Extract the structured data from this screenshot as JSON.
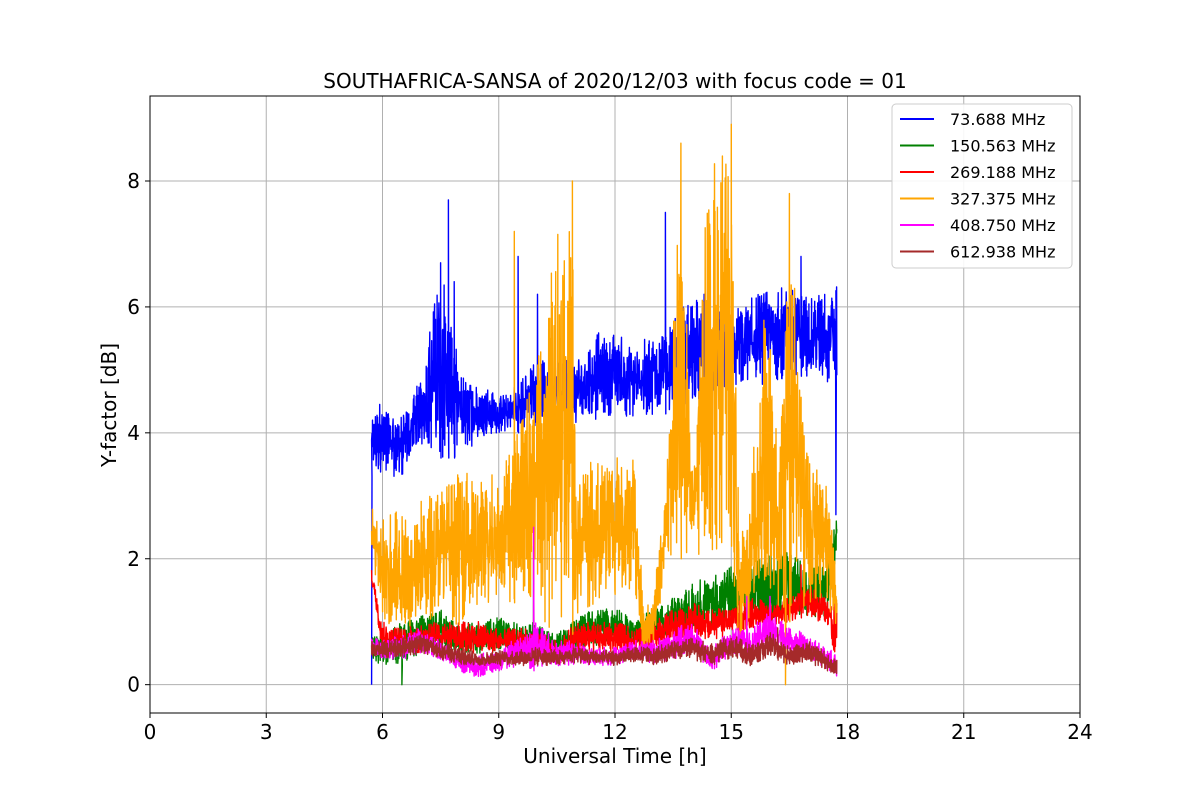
{
  "chart_data": {
    "type": "line",
    "title": "SOUTHAFRICA-SANSA of 2020/12/03 with focus code = 01",
    "xlabel": "Universal Time [h]",
    "ylabel": "Y-factor [dB]",
    "xlim": [
      0,
      24
    ],
    "ylim": [
      -0.45,
      9.35
    ],
    "xticks": [
      0,
      3,
      6,
      9,
      12,
      15,
      18,
      21,
      24
    ],
    "yticks": [
      0,
      2,
      4,
      6,
      8
    ],
    "xtick_labels": [
      "0",
      "3",
      "6",
      "9",
      "12",
      "15",
      "18",
      "21",
      "24"
    ],
    "ytick_labels": [
      "0",
      "2",
      "4",
      "6",
      "8"
    ],
    "grid": true,
    "legend_position": "top-right",
    "series": [
      {
        "name": " 73.688 MHz",
        "color": "#0000ff",
        "band": [
          [
            5.72,
            3.3,
            4.3
          ],
          [
            6.0,
            3.3,
            4.6
          ],
          [
            6.5,
            3.3,
            4.3
          ],
          [
            7.0,
            3.8,
            4.9
          ],
          [
            7.5,
            3.6,
            6.7
          ],
          [
            8.0,
            3.6,
            5.0
          ],
          [
            8.5,
            3.9,
            4.8
          ],
          [
            9.0,
            4.0,
            4.6
          ],
          [
            9.5,
            4.0,
            4.8
          ],
          [
            10.0,
            4.1,
            5.2
          ],
          [
            10.5,
            4.2,
            5.1
          ],
          [
            11.0,
            4.1,
            5.2
          ],
          [
            11.5,
            4.2,
            5.6
          ],
          [
            12.0,
            4.3,
            5.6
          ],
          [
            12.5,
            4.2,
            5.4
          ],
          [
            13.0,
            4.3,
            5.6
          ],
          [
            13.5,
            4.3,
            5.8
          ],
          [
            14.0,
            4.4,
            6.2
          ],
          [
            14.5,
            4.5,
            6.0
          ],
          [
            15.0,
            4.6,
            5.9
          ],
          [
            15.5,
            4.7,
            6.2
          ],
          [
            16.0,
            4.8,
            6.3
          ],
          [
            16.5,
            4.9,
            6.4
          ],
          [
            17.0,
            4.9,
            6.2
          ],
          [
            17.5,
            4.8,
            6.3
          ],
          [
            17.72,
            4.8,
            6.4
          ]
        ],
        "spikes": [
          [
            5.72,
            0.0
          ],
          [
            7.5,
            6.7
          ],
          [
            7.7,
            7.7
          ],
          [
            7.85,
            6.4
          ],
          [
            9.5,
            6.8
          ],
          [
            10.0,
            6.2
          ],
          [
            13.3,
            7.5
          ],
          [
            14.3,
            6.2
          ],
          [
            16.3,
            6.3
          ],
          [
            16.8,
            6.8
          ],
          [
            17.7,
            2.7
          ]
        ]
      },
      {
        "name": "150.563 MHz",
        "color": "#008000",
        "band": [
          [
            5.72,
            0.4,
            0.8
          ],
          [
            6.0,
            0.3,
            0.8
          ],
          [
            6.5,
            0.3,
            1.0
          ],
          [
            7.0,
            0.5,
            1.1
          ],
          [
            7.5,
            0.6,
            1.2
          ],
          [
            8.0,
            0.5,
            1.0
          ],
          [
            8.5,
            0.5,
            1.0
          ],
          [
            9.0,
            0.5,
            1.1
          ],
          [
            9.5,
            0.5,
            1.0
          ],
          [
            10.0,
            0.5,
            1.0
          ],
          [
            10.5,
            0.4,
            0.8
          ],
          [
            11.0,
            0.5,
            1.1
          ],
          [
            11.5,
            0.6,
            1.2
          ],
          [
            12.0,
            0.6,
            1.2
          ],
          [
            12.5,
            0.6,
            1.1
          ],
          [
            13.0,
            0.7,
            1.2
          ],
          [
            13.5,
            0.8,
            1.4
          ],
          [
            14.0,
            0.8,
            1.6
          ],
          [
            14.5,
            0.9,
            1.8
          ],
          [
            15.0,
            0.9,
            1.9
          ],
          [
            15.5,
            1.0,
            2.0
          ],
          [
            16.0,
            1.0,
            2.1
          ],
          [
            16.5,
            1.1,
            2.1
          ],
          [
            17.0,
            1.1,
            1.9
          ],
          [
            17.5,
            1.0,
            2.0
          ],
          [
            17.72,
            2.2,
            2.7
          ]
        ],
        "spikes": [
          [
            6.5,
            0.0
          ],
          [
            9.9,
            2.2
          ],
          [
            15.5,
            2.4
          ]
        ]
      },
      {
        "name": "269.188 MHz",
        "color": "#ff0000",
        "band": [
          [
            5.72,
            1.6,
            1.9
          ],
          [
            6.0,
            0.5,
            1.0
          ],
          [
            6.5,
            0.5,
            0.9
          ],
          [
            7.0,
            0.5,
            1.0
          ],
          [
            7.5,
            0.6,
            1.0
          ],
          [
            8.0,
            0.5,
            1.0
          ],
          [
            8.5,
            0.5,
            1.0
          ],
          [
            9.0,
            0.5,
            0.9
          ],
          [
            9.5,
            0.4,
            0.9
          ],
          [
            10.0,
            0.4,
            0.9
          ],
          [
            10.5,
            0.3,
            0.7
          ],
          [
            11.0,
            0.5,
            1.0
          ],
          [
            11.5,
            0.5,
            1.0
          ],
          [
            12.0,
            0.5,
            1.0
          ],
          [
            12.5,
            0.5,
            0.9
          ],
          [
            13.0,
            0.6,
            1.0
          ],
          [
            13.5,
            0.7,
            1.2
          ],
          [
            14.0,
            0.7,
            1.3
          ],
          [
            14.5,
            0.7,
            1.2
          ],
          [
            15.0,
            0.8,
            1.3
          ],
          [
            15.5,
            0.9,
            1.4
          ],
          [
            16.0,
            0.9,
            1.3
          ],
          [
            16.5,
            1.0,
            1.4
          ],
          [
            17.0,
            1.1,
            1.6
          ],
          [
            17.5,
            0.9,
            1.4
          ],
          [
            17.72,
            0.2,
            1.3
          ]
        ],
        "spikes": [
          [
            16.8,
            1.9
          ]
        ]
      },
      {
        "name": "327.375 MHz",
        "color": "#ffa500",
        "band": [
          [
            5.72,
            2.2,
            2.8
          ],
          [
            6.0,
            0.8,
            2.7
          ],
          [
            6.5,
            0.8,
            2.8
          ],
          [
            7.0,
            0.9,
            3.0
          ],
          [
            7.5,
            1.2,
            3.2
          ],
          [
            8.0,
            0.9,
            3.4
          ],
          [
            8.5,
            1.2,
            3.3
          ],
          [
            9.0,
            1.3,
            3.6
          ],
          [
            9.5,
            1.3,
            4.0
          ],
          [
            10.0,
            1.0,
            5.5
          ],
          [
            10.5,
            0.8,
            7.2
          ],
          [
            10.9,
            0.8,
            7.8
          ],
          [
            11.0,
            1.0,
            3.7
          ],
          [
            11.5,
            1.3,
            3.6
          ],
          [
            12.0,
            1.4,
            3.7
          ],
          [
            12.5,
            1.5,
            3.6
          ],
          [
            12.75,
            0.4,
            1.2
          ],
          [
            13.0,
            0.5,
            1.5
          ],
          [
            13.3,
            1.9,
            3.0
          ],
          [
            13.7,
            2.0,
            8.4
          ],
          [
            14.0,
            2.0,
            3.3
          ],
          [
            14.4,
            2.1,
            8.3
          ],
          [
            15.0,
            2.2,
            8.5
          ],
          [
            15.2,
            0.4,
            2.4
          ],
          [
            15.5,
            1.0,
            3.2
          ],
          [
            15.9,
            1.0,
            6.5
          ],
          [
            16.2,
            1.2,
            3.6
          ],
          [
            16.5,
            1.0,
            7.5
          ],
          [
            17.0,
            1.3,
            3.8
          ],
          [
            17.5,
            1.3,
            3.2
          ],
          [
            17.72,
            0.7,
            1.6
          ]
        ],
        "spikes": [
          [
            9.4,
            7.2
          ],
          [
            10.9,
            8.0
          ],
          [
            13.7,
            8.6
          ],
          [
            15.0,
            8.9
          ],
          [
            16.5,
            7.8
          ],
          [
            16.4,
            0.0
          ]
        ]
      },
      {
        "name": "408.750 MHz",
        "color": "#ff00ff",
        "band": [
          [
            5.72,
            0.5,
            0.8
          ],
          [
            6.0,
            0.4,
            0.7
          ],
          [
            6.5,
            0.4,
            0.8
          ],
          [
            7.0,
            0.5,
            0.9
          ],
          [
            7.5,
            0.4,
            0.7
          ],
          [
            8.0,
            0.2,
            0.5
          ],
          [
            8.5,
            0.1,
            0.5
          ],
          [
            9.0,
            0.2,
            0.5
          ],
          [
            9.5,
            0.3,
            0.8
          ],
          [
            10.0,
            0.2,
            1.0
          ],
          [
            10.5,
            0.3,
            0.7
          ],
          [
            11.0,
            0.3,
            0.7
          ],
          [
            11.5,
            0.3,
            0.6
          ],
          [
            12.0,
            0.3,
            0.6
          ],
          [
            12.5,
            0.4,
            0.7
          ],
          [
            13.0,
            0.3,
            0.7
          ],
          [
            13.5,
            0.4,
            0.9
          ],
          [
            14.0,
            0.5,
            1.0
          ],
          [
            14.5,
            0.2,
            0.6
          ],
          [
            15.0,
            0.5,
            0.9
          ],
          [
            15.5,
            0.4,
            0.9
          ],
          [
            16.0,
            0.6,
            1.2
          ],
          [
            16.5,
            0.5,
            0.9
          ],
          [
            17.0,
            0.4,
            0.8
          ],
          [
            17.5,
            0.2,
            0.6
          ],
          [
            17.72,
            0.1,
            0.5
          ]
        ],
        "spikes": [
          [
            9.9,
            2.5
          ],
          [
            15.4,
            1.4
          ],
          [
            16.0,
            1.4
          ]
        ]
      },
      {
        "name": "612.938 MHz",
        "color": "#a52a2a",
        "band": [
          [
            5.72,
            0.45,
            0.7
          ],
          [
            6.0,
            0.4,
            0.7
          ],
          [
            6.5,
            0.45,
            0.75
          ],
          [
            7.0,
            0.5,
            0.8
          ],
          [
            7.5,
            0.4,
            0.7
          ],
          [
            8.0,
            0.3,
            0.6
          ],
          [
            8.5,
            0.3,
            0.5
          ],
          [
            9.0,
            0.3,
            0.55
          ],
          [
            9.5,
            0.3,
            0.55
          ],
          [
            10.0,
            0.3,
            0.6
          ],
          [
            10.5,
            0.3,
            0.55
          ],
          [
            11.0,
            0.35,
            0.6
          ],
          [
            11.5,
            0.3,
            0.55
          ],
          [
            12.0,
            0.3,
            0.55
          ],
          [
            12.5,
            0.35,
            0.6
          ],
          [
            13.0,
            0.3,
            0.6
          ],
          [
            13.5,
            0.4,
            0.7
          ],
          [
            14.0,
            0.4,
            0.75
          ],
          [
            14.5,
            0.3,
            0.65
          ],
          [
            15.0,
            0.4,
            0.8
          ],
          [
            15.5,
            0.3,
            0.65
          ],
          [
            16.0,
            0.45,
            0.85
          ],
          [
            16.5,
            0.3,
            0.6
          ],
          [
            17.0,
            0.35,
            0.7
          ],
          [
            17.5,
            0.2,
            0.5
          ],
          [
            17.72,
            0.1,
            0.4
          ]
        ],
        "spikes": [
          [
            16.2,
            0.9
          ]
        ]
      }
    ]
  }
}
